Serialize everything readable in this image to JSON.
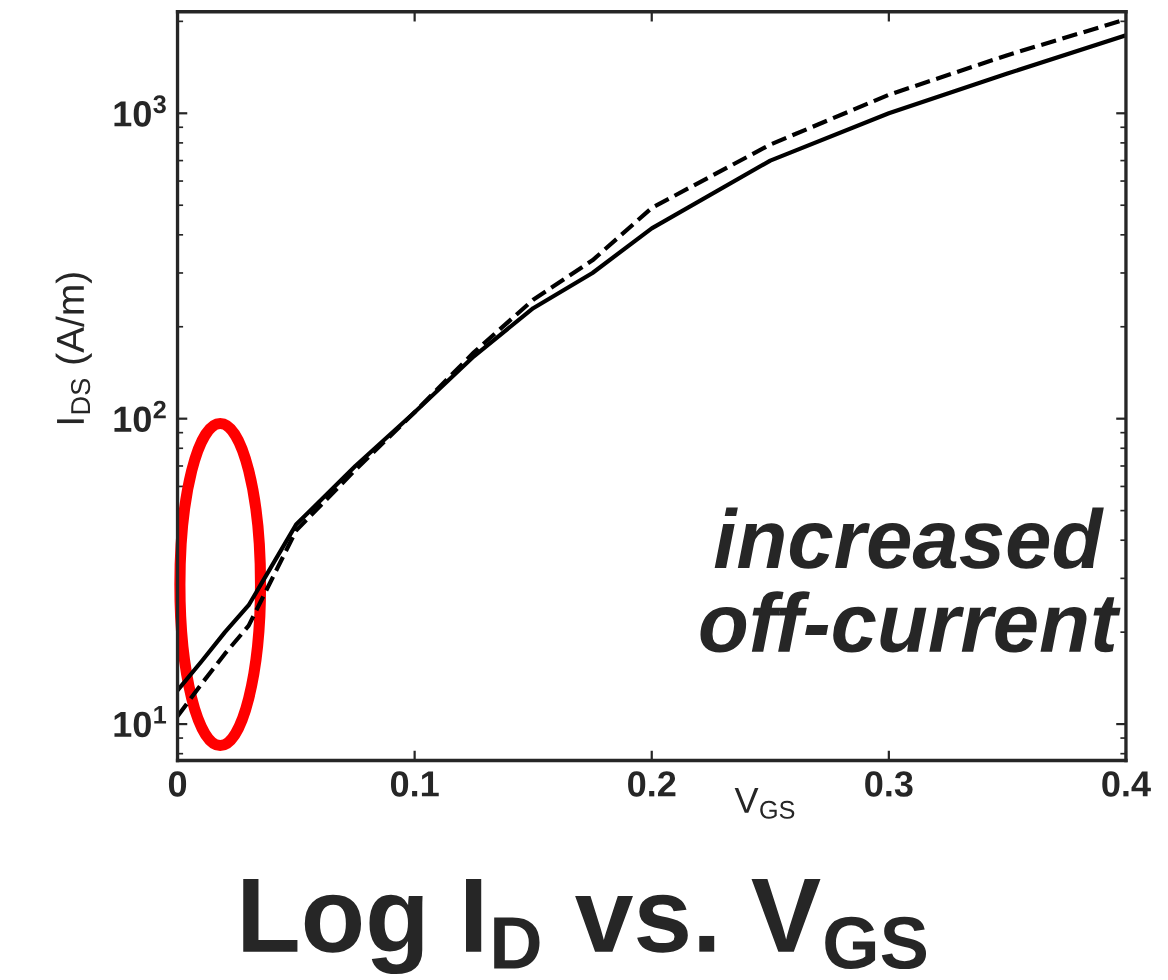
{
  "chart_data": {
    "type": "line",
    "title": "Log I$_{D}$ vs. V$_{GS}$",
    "xlabel": "V$_{GS}$",
    "ylabel": "I$_{DS}$ (A/m)",
    "x": [
      0,
      0.01,
      0.02,
      0.03,
      0.05,
      0.075,
      0.1,
      0.125,
      0.15,
      0.175,
      0.2,
      0.25,
      0.3,
      0.35,
      0.4
    ],
    "series": [
      {
        "color": "#000000",
        "line_style": "solid",
        "values": [
          12.9,
          16,
          20,
          24.5,
          45,
          70,
          105,
          160,
          230,
          300,
          420,
          700,
          1000,
          1350,
          1800
        ]
      },
      {
        "color": "#000000",
        "line_style": "dashed",
        "values": [
          10.6,
          13.5,
          17,
          21,
          43,
          68,
          105,
          165,
          245,
          330,
          490,
          790,
          1150,
          1550,
          2030
        ]
      }
    ],
    "log": "y",
    "xlim": [
      0,
      0.4
    ],
    "ylim": [
      7.6,
      2150
    ],
    "xticks": [
      0,
      0.1,
      0.2,
      0.3,
      0.4
    ],
    "yticks": [
      {
        "value": 10,
        "label": "10$^{1}$"
      },
      {
        "value": 100,
        "label": "10$^{2}$"
      },
      {
        "value": 1000,
        "label": "10$^{3}$"
      }
    ],
    "grid": false,
    "annotations": [
      "increased\noff-current"
    ]
  }
}
